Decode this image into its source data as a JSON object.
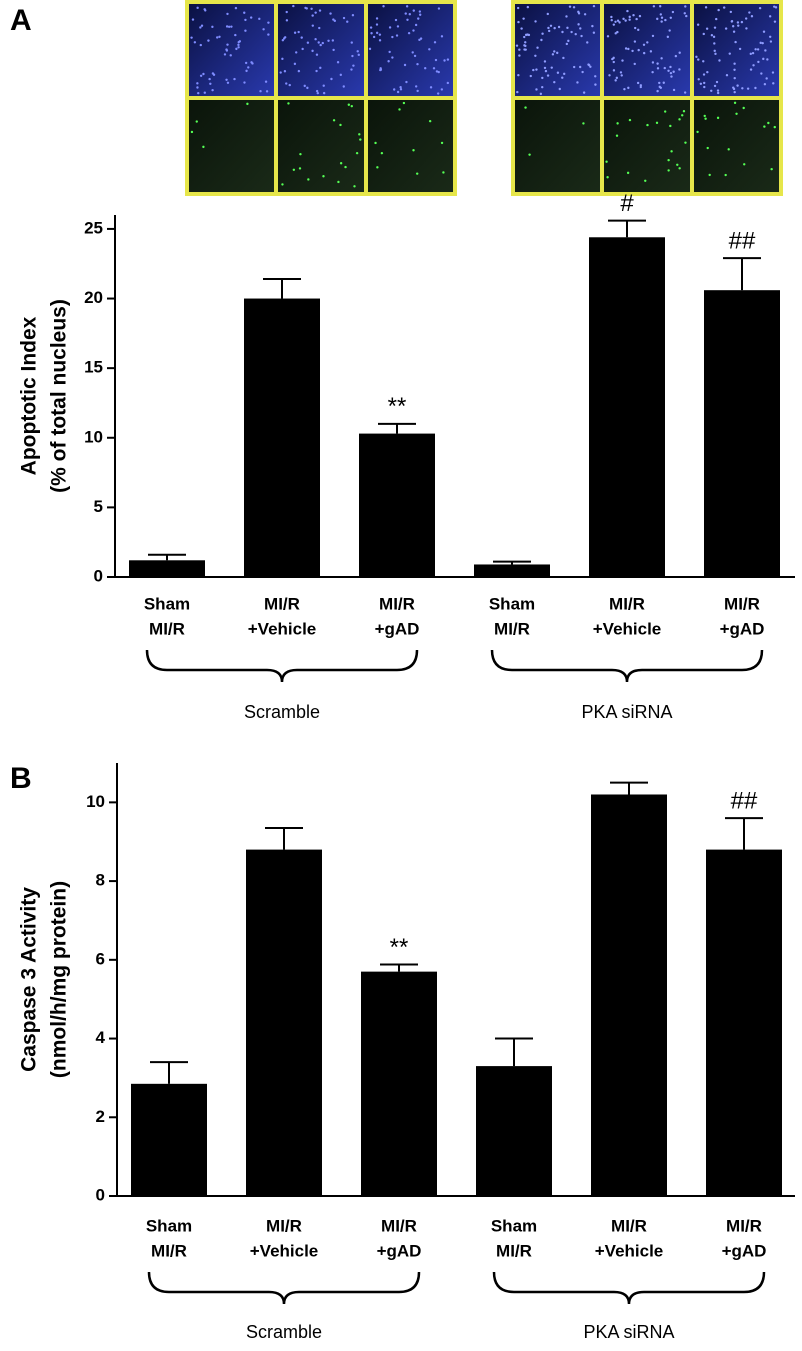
{
  "chart_data": [
    {
      "type": "bar",
      "panel": "A",
      "ylabel": [
        "Apoptotic Index",
        "(% of total nucleus)"
      ],
      "groups": [
        {
          "label": "Scramble",
          "categories": [
            [
              "Sham",
              "MI/R"
            ],
            [
              "MI/R",
              "+Vehicle"
            ],
            [
              "MI/R",
              "+gAD"
            ]
          ]
        },
        {
          "label": "PKA siRNA",
          "categories": [
            [
              "Sham",
              "MI/R"
            ],
            [
              "MI/R",
              "+Vehicle"
            ],
            [
              "MI/R",
              "+gAD"
            ]
          ]
        }
      ],
      "values": [
        1.2,
        20.0,
        10.3,
        0.9,
        24.4,
        20.6
      ],
      "errors": [
        0.4,
        1.4,
        0.7,
        0.2,
        1.2,
        2.3
      ],
      "annotations": [
        null,
        null,
        "**",
        null,
        "#",
        "##"
      ],
      "color": "#000000",
      "ylim": [
        0,
        26
      ],
      "yticks": [
        0,
        5,
        10,
        15,
        20,
        25
      ]
    },
    {
      "type": "bar",
      "panel": "B",
      "ylabel": [
        "Caspase 3 Activity",
        "(nmol/h/mg protein)"
      ],
      "groups": [
        {
          "label": "Scramble",
          "categories": [
            [
              "Sham",
              "MI/R"
            ],
            [
              "MI/R",
              "+Vehicle"
            ],
            [
              "MI/R",
              "+gAD"
            ]
          ]
        },
        {
          "label": "PKA siRNA",
          "categories": [
            [
              "Sham",
              "MI/R"
            ],
            [
              "MI/R",
              "+Vehicle"
            ],
            [
              "MI/R",
              "+gAD"
            ]
          ]
        }
      ],
      "values": [
        2.85,
        8.8,
        5.7,
        3.3,
        10.2,
        8.8
      ],
      "errors": [
        0.55,
        0.55,
        0.18,
        0.7,
        0.3,
        0.8
      ],
      "annotations": [
        null,
        null,
        "**",
        null,
        null,
        "##"
      ],
      "color": "#000000",
      "ylim": [
        0,
        11
      ],
      "yticks": [
        0,
        2,
        4,
        6,
        8,
        10
      ]
    }
  ]
}
